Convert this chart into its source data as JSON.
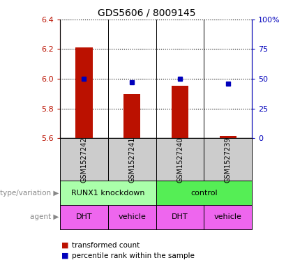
{
  "title": "GDS5606 / 8009145",
  "samples": [
    "GSM1527242",
    "GSM1527241",
    "GSM1527240",
    "GSM1527239"
  ],
  "bar_values": [
    6.21,
    5.895,
    5.955,
    5.615
  ],
  "bar_base": 5.6,
  "bar_color": "#bb1100",
  "percentile_values": [
    50,
    47,
    50,
    46
  ],
  "percentile_color": "#0000bb",
  "ylim_left": [
    5.6,
    6.4
  ],
  "ylim_right": [
    0,
    100
  ],
  "yticks_left": [
    5.6,
    5.8,
    6.0,
    6.2,
    6.4
  ],
  "yticks_right": [
    0,
    25,
    50,
    75,
    100
  ],
  "ytick_labels_right": [
    "0",
    "25",
    "50",
    "75",
    "100%"
  ],
  "bar_width": 0.35,
  "x_positions": [
    1,
    2,
    3,
    4
  ],
  "genotype_colors": [
    "#aaffaa",
    "#55ee55"
  ],
  "genotype_labels": [
    "RUNX1 knockdown",
    "control"
  ],
  "agent_color": "#ee66ee",
  "agent_labels": [
    "DHT",
    "vehicle",
    "DHT",
    "vehicle"
  ],
  "legend_red_label": "transformed count",
  "legend_blue_label": "percentile rank within the sample",
  "red_color": "#bb1100",
  "blue_color": "#0000bb",
  "sample_bg_color": "#cccccc",
  "geno_label": "genotype/variation",
  "agent_label": "agent",
  "title_fontsize": 10
}
